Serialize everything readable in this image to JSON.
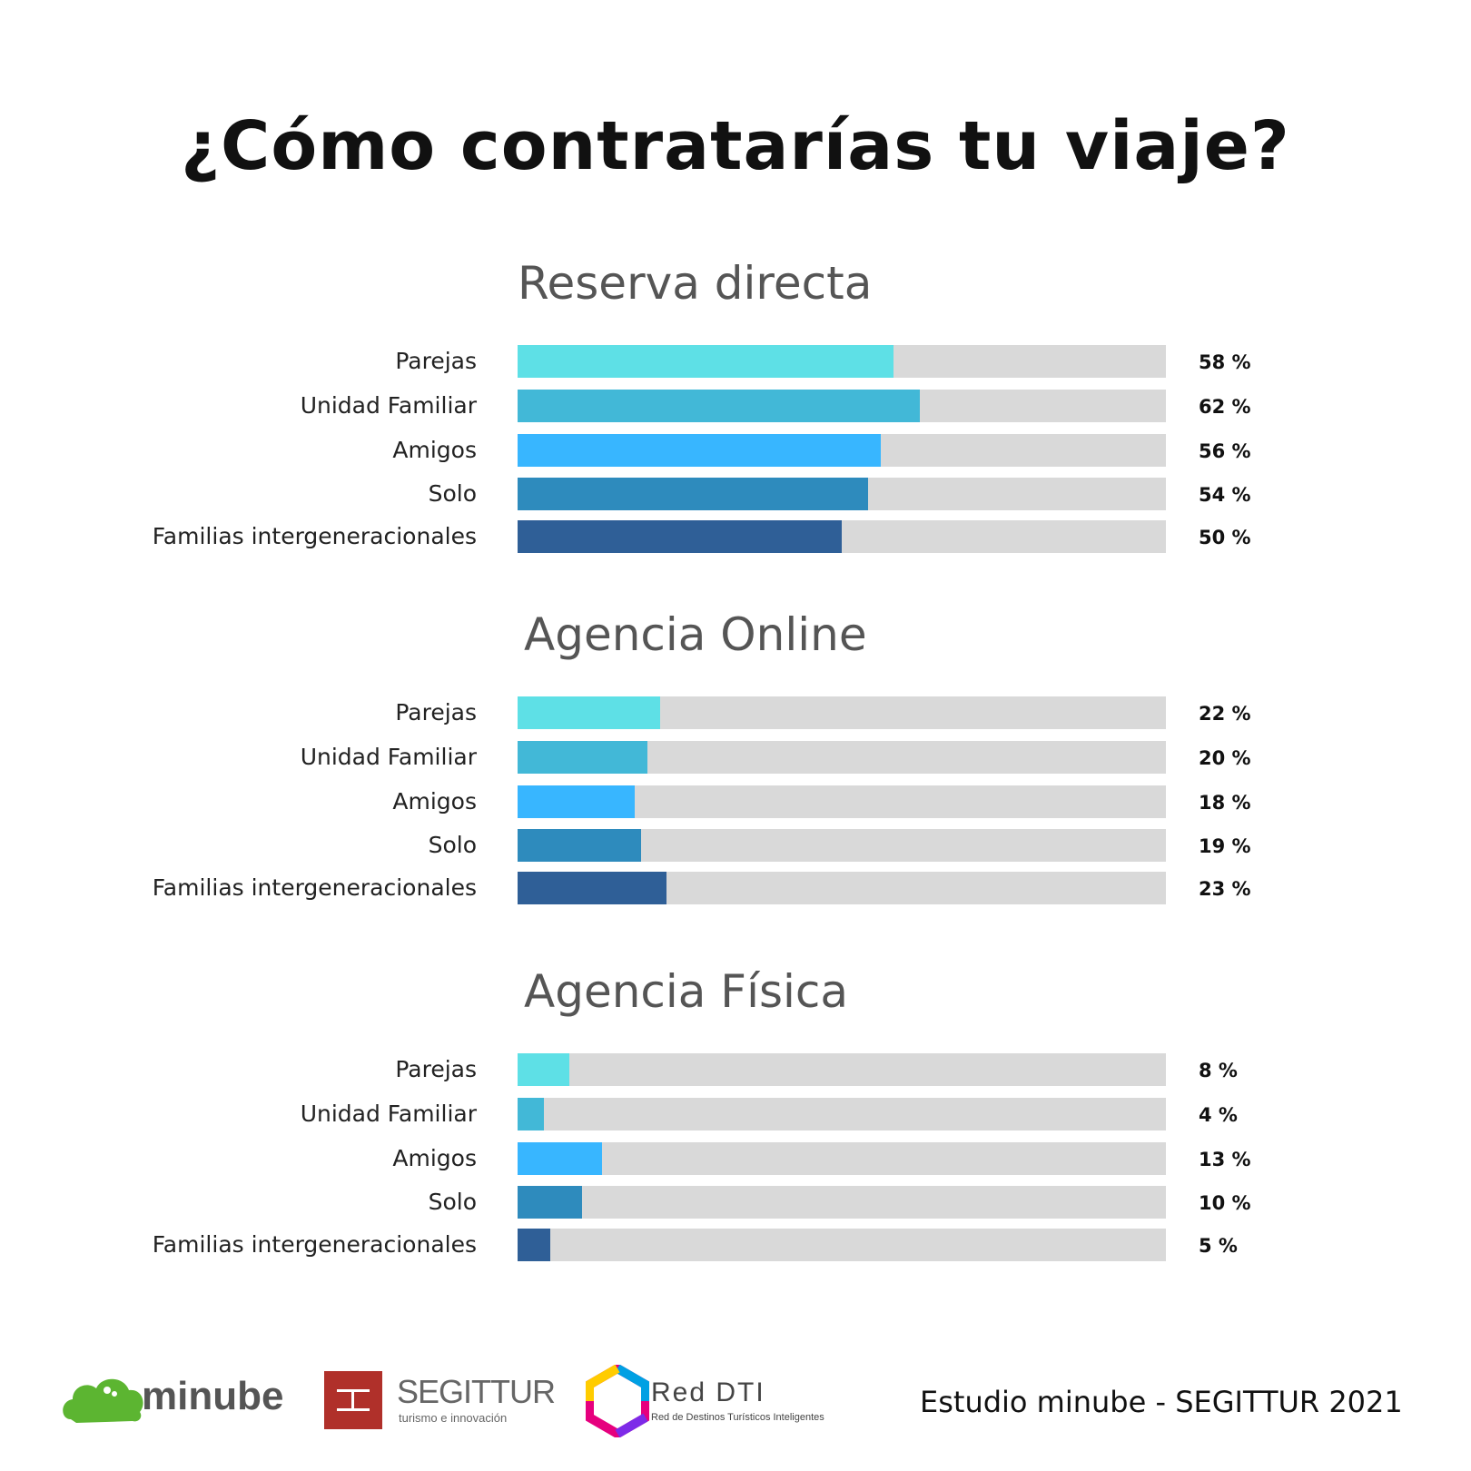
{
  "title": "¿Cómo contratarías tu viaje?",
  "colors": [
    "#5ee0e6",
    "#42b8d7",
    "#38b6ff",
    "#2e8bbd",
    "#2f5f97"
  ],
  "track_color": "#d9d9d9",
  "chart_data": [
    {
      "type": "bar",
      "orientation": "horizontal",
      "title": "Reserva directa",
      "categories": [
        "Parejas",
        "Unidad Familiar",
        "Amigos",
        "Solo",
        "Familias intergeneracionales"
      ],
      "values": [
        58,
        62,
        56,
        54,
        50
      ],
      "labels": [
        "58 %",
        "62 %",
        "56 %",
        "54 %",
        "50 %"
      ],
      "xlim": [
        0,
        100
      ]
    },
    {
      "type": "bar",
      "orientation": "horizontal",
      "title": "Agencia Online",
      "categories": [
        "Parejas",
        "Unidad Familiar",
        "Amigos",
        "Solo",
        "Familias intergeneracionales"
      ],
      "values": [
        22,
        20,
        18,
        19,
        23
      ],
      "labels": [
        "22 %",
        "20 %",
        "18 %",
        "19 %",
        "23 %"
      ],
      "xlim": [
        0,
        100
      ]
    },
    {
      "type": "bar",
      "orientation": "horizontal",
      "title": "Agencia Física",
      "categories": [
        "Parejas",
        "Unidad Familiar",
        "Amigos",
        "Solo",
        "Familias intergeneracionales"
      ],
      "values": [
        8,
        4,
        13,
        10,
        5
      ],
      "labels": [
        "8 %",
        "4 %",
        "13 %",
        "10 %",
        "5 %"
      ],
      "xlim": [
        0,
        100
      ]
    }
  ],
  "footer": {
    "source": "Estudio minube - SEGITTUR 2021",
    "logos": {
      "minube": "minube",
      "segittur": "SEGITTUR",
      "segittur_sub": "turismo e innovación",
      "reddti": "Red DTI",
      "reddti_sub": "Red de Destinos Turísticos Inteligentes"
    }
  }
}
